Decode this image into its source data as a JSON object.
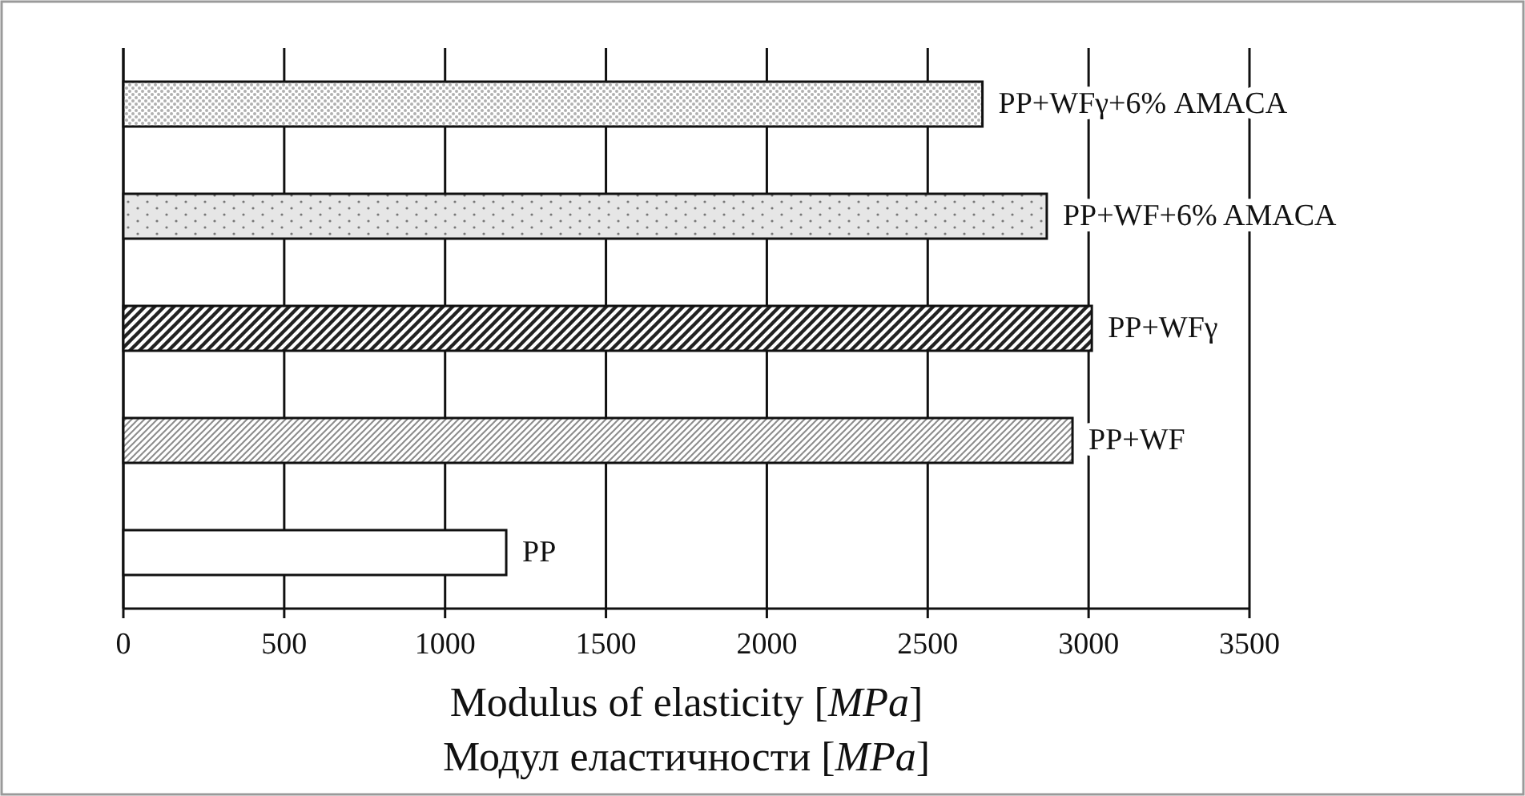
{
  "chart_data": {
    "type": "bar",
    "orientation": "horizontal",
    "xlabel": "Modulus of elasticity [MPa]\nМодул еластичности [MPa]",
    "categories": [
      "PP+WFγ+6% AMACA",
      "PP+WF+6% AMACA",
      "PP+WFγ",
      "PP+WF",
      "PP"
    ],
    "values": [
      2670,
      2870,
      3010,
      2950,
      1190
    ],
    "xlim": [
      0,
      3500
    ],
    "xticks": [
      0,
      500,
      1000,
      1500,
      2000,
      2500,
      3000,
      3500
    ],
    "grid": "x"
  }
}
